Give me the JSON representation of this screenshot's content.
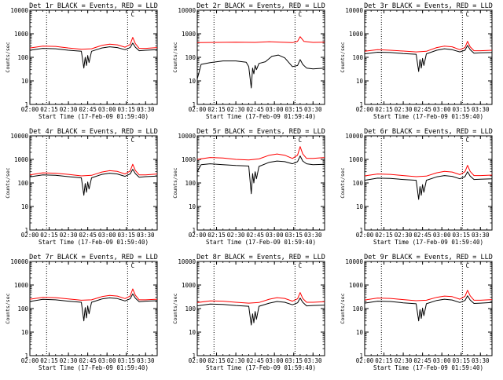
{
  "colors": {
    "events": "#000000",
    "lld": "#ff0000",
    "background": "#ffffff",
    "axes": "#000000"
  },
  "common": {
    "xlabel": "Start Time (17-Feb-09 01:59:40)",
    "ylabel": "Counts/sec",
    "x_ticks": [
      "02:00",
      "02:15",
      "02:30",
      "02:45",
      "03:00",
      "03:15",
      "03:30"
    ],
    "y_ticks": [
      "1",
      "10",
      "100",
      "1000",
      "10000"
    ],
    "marker_label": "C"
  },
  "chart_data": [
    {
      "type": "line",
      "id": "det1",
      "title": "Det 1r BLACK = Events, RED = LLD",
      "xlabel": "Start Time (17-Feb-09 01:59:40)",
      "ylabel": "Counts/sec",
      "xlim": [
        "02:00",
        "03:39"
      ],
      "ylim": [
        1,
        10000
      ],
      "yscale": "log",
      "vlines": [
        "02:13",
        "03:16"
      ],
      "marker": {
        "time": "03:20",
        "label": "C"
      },
      "series": [
        {
          "color": "#ff0000",
          "x": [
            "02:00",
            "02:10",
            "02:20",
            "02:30",
            "02:40",
            "02:48",
            "02:56",
            "03:02",
            "03:08",
            "03:14",
            "03:18",
            "03:20",
            "03:22",
            "03:25",
            "03:30",
            "03:39"
          ],
          "y": [
            250,
            300,
            290,
            250,
            220,
            230,
            320,
            360,
            340,
            270,
            350,
            700,
            380,
            240,
            240,
            260
          ]
        },
        {
          "color": "#000000",
          "x": [
            "02:00",
            "02:10",
            "02:20",
            "02:30",
            "02:40",
            "02:42",
            "02:43",
            "02:44",
            "02:45",
            "02:46",
            "02:48",
            "02:56",
            "03:02",
            "03:08",
            "03:14",
            "03:18",
            "03:20",
            "03:22",
            "03:25",
            "03:30",
            "03:39"
          ],
          "y": [
            200,
            240,
            230,
            200,
            180,
            35,
            100,
            45,
            120,
            60,
            180,
            250,
            280,
            260,
            210,
            260,
            400,
            270,
            190,
            200,
            210
          ]
        }
      ]
    },
    {
      "type": "line",
      "id": "det2",
      "title": "Det 2r BLACK = Events, RED = LLD",
      "xlabel": "Start Time (17-Feb-09 01:59:40)",
      "ylabel": "Counts/sec",
      "xlim": [
        "02:00",
        "03:39"
      ],
      "ylim": [
        1,
        10000
      ],
      "yscale": "log",
      "vlines": [
        "02:13",
        "03:16"
      ],
      "marker": {
        "time": "03:20",
        "label": "C"
      },
      "series": [
        {
          "color": "#ff0000",
          "x": [
            "02:00",
            "02:15",
            "02:30",
            "02:45",
            "02:56",
            "03:05",
            "03:14",
            "03:18",
            "03:20",
            "03:23",
            "03:30",
            "03:39"
          ],
          "y": [
            420,
            430,
            440,
            430,
            460,
            440,
            420,
            480,
            750,
            470,
            430,
            440
          ]
        },
        {
          "color": "#000000",
          "x": [
            "02:00",
            "02:03",
            "02:10",
            "02:20",
            "02:30",
            "02:38",
            "02:40",
            "02:42",
            "02:43",
            "02:44",
            "02:45",
            "02:46",
            "02:48",
            "02:53",
            "02:58",
            "03:03",
            "03:08",
            "03:14",
            "03:18",
            "03:20",
            "03:22",
            "03:25",
            "03:30",
            "03:39"
          ],
          "y": [
            12,
            50,
            60,
            70,
            70,
            62,
            40,
            5,
            35,
            20,
            45,
            30,
            55,
            65,
            110,
            125,
            95,
            40,
            45,
            80,
            50,
            35,
            32,
            35
          ]
        }
      ]
    },
    {
      "type": "line",
      "id": "det3",
      "title": "Det 3r BLACK = Events, RED = LLD",
      "xlabel": "Start Time (17-Feb-09 01:59:40)",
      "ylabel": "Counts/sec",
      "xlim": [
        "02:00",
        "03:39"
      ],
      "ylim": [
        1,
        10000
      ],
      "yscale": "log",
      "vlines": [
        "02:13",
        "03:16"
      ],
      "marker": {
        "time": "03:20",
        "label": "C"
      },
      "series": [
        {
          "color": "#ff0000",
          "x": [
            "02:00",
            "02:10",
            "02:20",
            "02:30",
            "02:40",
            "02:48",
            "02:56",
            "03:02",
            "03:08",
            "03:14",
            "03:18",
            "03:20",
            "03:22",
            "03:25",
            "03:30",
            "03:39"
          ],
          "y": [
            180,
            210,
            200,
            185,
            170,
            180,
            260,
            300,
            280,
            210,
            260,
            480,
            280,
            190,
            190,
            200
          ]
        },
        {
          "color": "#000000",
          "x": [
            "02:00",
            "02:10",
            "02:20",
            "02:30",
            "02:40",
            "02:42",
            "02:43",
            "02:44",
            "02:45",
            "02:46",
            "02:48",
            "02:56",
            "03:02",
            "03:08",
            "03:14",
            "03:18",
            "03:20",
            "03:22",
            "03:25",
            "03:30",
            "03:39"
          ],
          "y": [
            140,
            165,
            160,
            145,
            135,
            25,
            80,
            35,
            90,
            45,
            140,
            200,
            230,
            210,
            170,
            200,
            320,
            210,
            150,
            155,
            160
          ]
        }
      ]
    },
    {
      "type": "line",
      "id": "det4",
      "title": "Det 4r BLACK = Events, RED = LLD",
      "xlabel": "Start Time (17-Feb-09 01:59:40)",
      "ylabel": "Counts/sec",
      "xlim": [
        "02:00",
        "03:39"
      ],
      "ylim": [
        1,
        10000
      ],
      "yscale": "log",
      "vlines": [
        "02:13",
        "03:16"
      ],
      "marker": {
        "time": "03:20",
        "label": "C"
      },
      "series": [
        {
          "color": "#ff0000",
          "x": [
            "02:00",
            "02:10",
            "02:20",
            "02:30",
            "02:40",
            "02:48",
            "02:56",
            "03:02",
            "03:08",
            "03:14",
            "03:18",
            "03:20",
            "03:22",
            "03:25",
            "03:30",
            "03:39"
          ],
          "y": [
            220,
            270,
            260,
            230,
            200,
            210,
            290,
            330,
            310,
            240,
            320,
            620,
            340,
            220,
            220,
            240
          ]
        },
        {
          "color": "#000000",
          "x": [
            "02:00",
            "02:10",
            "02:20",
            "02:30",
            "02:40",
            "02:42",
            "02:43",
            "02:44",
            "02:45",
            "02:46",
            "02:48",
            "02:56",
            "03:02",
            "03:08",
            "03:14",
            "03:18",
            "03:20",
            "03:22",
            "03:25",
            "03:30",
            "03:39"
          ],
          "y": [
            180,
            220,
            210,
            185,
            165,
            30,
            95,
            40,
            110,
            55,
            165,
            230,
            260,
            240,
            190,
            240,
            380,
            250,
            175,
            185,
            195
          ]
        }
      ]
    },
    {
      "type": "line",
      "id": "det5",
      "title": "Det 5r BLACK = Events, RED = LLD",
      "xlabel": "Start Time (17-Feb-09 01:59:40)",
      "ylabel": "Counts/sec",
      "xlim": [
        "02:00",
        "03:39"
      ],
      "ylim": [
        1,
        10000
      ],
      "yscale": "log",
      "vlines": [
        "02:13",
        "03:16"
      ],
      "marker": {
        "time": "03:20",
        "label": "C"
      },
      "series": [
        {
          "color": "#ff0000",
          "x": [
            "02:00",
            "02:10",
            "02:20",
            "02:30",
            "02:40",
            "02:48",
            "02:56",
            "03:02",
            "03:08",
            "03:14",
            "03:18",
            "03:20",
            "03:22",
            "03:25",
            "03:30",
            "03:39"
          ],
          "y": [
            1000,
            1200,
            1150,
            1000,
            950,
            1050,
            1500,
            1700,
            1500,
            1100,
            1500,
            3500,
            1700,
            1100,
            1100,
            1200
          ]
        },
        {
          "color": "#000000",
          "x": [
            "02:00",
            "02:03",
            "02:10",
            "02:20",
            "02:30",
            "02:40",
            "02:42",
            "02:43",
            "02:44",
            "02:45",
            "02:46",
            "02:48",
            "02:56",
            "03:02",
            "03:08",
            "03:14",
            "03:18",
            "03:20",
            "03:22",
            "03:25",
            "03:30",
            "03:39"
          ],
          "y": [
            300,
            600,
            650,
            600,
            550,
            520,
            35,
            250,
            100,
            300,
            150,
            500,
            750,
            850,
            800,
            650,
            800,
            1400,
            850,
            650,
            600,
            620
          ]
        }
      ]
    },
    {
      "type": "line",
      "id": "det6",
      "title": "Det 6r BLACK = Events, RED = LLD",
      "xlabel": "Start Time (17-Feb-09 01:59:40)",
      "ylabel": "Counts/sec",
      "xlim": [
        "02:00",
        "03:39"
      ],
      "ylim": [
        1,
        10000
      ],
      "yscale": "log",
      "vlines": [
        "02:13",
        "03:16"
      ],
      "marker": {
        "time": "03:20",
        "label": "C"
      },
      "series": [
        {
          "color": "#ff0000",
          "x": [
            "02:00",
            "02:10",
            "02:20",
            "02:30",
            "02:40",
            "02:48",
            "02:56",
            "03:02",
            "03:08",
            "03:14",
            "03:18",
            "03:20",
            "03:22",
            "03:25",
            "03:30",
            "03:39"
          ],
          "y": [
            200,
            240,
            230,
            205,
            185,
            195,
            270,
            310,
            290,
            225,
            300,
            560,
            310,
            205,
            205,
            215
          ]
        },
        {
          "color": "#000000",
          "x": [
            "02:00",
            "02:10",
            "02:20",
            "02:30",
            "02:40",
            "02:42",
            "02:43",
            "02:44",
            "02:45",
            "02:46",
            "02:48",
            "02:56",
            "03:02",
            "03:08",
            "03:14",
            "03:18",
            "03:20",
            "03:22",
            "03:25",
            "03:30",
            "03:39"
          ],
          "y": [
            130,
            160,
            155,
            140,
            130,
            20,
            70,
            30,
            85,
            40,
            130,
            180,
            205,
            190,
            150,
            185,
            300,
            195,
            140,
            145,
            150
          ]
        }
      ]
    },
    {
      "type": "line",
      "id": "det7",
      "title": "Det 7r BLACK = Events, RED = LLD",
      "xlabel": "Start Time (17-Feb-09 01:59:40)",
      "ylabel": "Counts/sec",
      "xlim": [
        "02:00",
        "03:39"
      ],
      "ylim": [
        1,
        10000
      ],
      "yscale": "log",
      "vlines": [
        "02:13",
        "03:16"
      ],
      "marker": {
        "time": "03:20",
        "label": "C"
      },
      "series": [
        {
          "color": "#ff0000",
          "x": [
            "02:00",
            "02:10",
            "02:20",
            "02:30",
            "02:40",
            "02:48",
            "02:56",
            "03:02",
            "03:08",
            "03:14",
            "03:18",
            "03:20",
            "03:22",
            "03:25",
            "03:30",
            "03:39"
          ],
          "y": [
            250,
            300,
            290,
            255,
            225,
            235,
            320,
            360,
            340,
            265,
            340,
            680,
            370,
            235,
            235,
            250
          ]
        },
        {
          "color": "#000000",
          "x": [
            "02:00",
            "02:10",
            "02:20",
            "02:30",
            "02:40",
            "02:42",
            "02:43",
            "02:44",
            "02:45",
            "02:46",
            "02:48",
            "02:56",
            "03:02",
            "03:08",
            "03:14",
            "03:18",
            "03:20",
            "03:22",
            "03:25",
            "03:30",
            "03:39"
          ],
          "y": [
            200,
            245,
            235,
            205,
            185,
            30,
            110,
            40,
            130,
            60,
            185,
            255,
            285,
            265,
            210,
            260,
            420,
            275,
            195,
            205,
            215
          ]
        }
      ]
    },
    {
      "type": "line",
      "id": "det8",
      "title": "Det 8r BLACK = Events, RED = LLD",
      "xlabel": "Start Time (17-Feb-09 01:59:40)",
      "ylabel": "Counts/sec",
      "xlim": [
        "02:00",
        "03:39"
      ],
      "ylim": [
        1,
        10000
      ],
      "yscale": "log",
      "vlines": [
        "02:13",
        "03:16"
      ],
      "marker": {
        "time": "03:20",
        "label": "C"
      },
      "series": [
        {
          "color": "#ff0000",
          "x": [
            "02:00",
            "02:10",
            "02:20",
            "02:30",
            "02:40",
            "02:48",
            "02:56",
            "03:02",
            "03:08",
            "03:14",
            "03:18",
            "03:20",
            "03:22",
            "03:25",
            "03:30",
            "03:39"
          ],
          "y": [
            180,
            210,
            205,
            185,
            170,
            180,
            250,
            290,
            270,
            205,
            260,
            480,
            270,
            185,
            185,
            195
          ]
        },
        {
          "color": "#000000",
          "x": [
            "02:00",
            "02:10",
            "02:20",
            "02:30",
            "02:40",
            "02:42",
            "02:43",
            "02:44",
            "02:45",
            "02:46",
            "02:48",
            "02:56",
            "03:02",
            "03:08",
            "03:14",
            "03:18",
            "03:20",
            "03:22",
            "03:25",
            "03:30",
            "03:39"
          ],
          "y": [
            130,
            155,
            150,
            135,
            125,
            20,
            60,
            25,
            75,
            35,
            125,
            170,
            200,
            185,
            145,
            175,
            280,
            185,
            130,
            135,
            140
          ]
        }
      ]
    },
    {
      "type": "line",
      "id": "det9",
      "title": "Det 9r BLACK = Events, RED = LLD",
      "xlabel": "Start Time (17-Feb-09 01:59:40)",
      "ylabel": "Counts/sec",
      "xlim": [
        "02:00",
        "03:39"
      ],
      "ylim": [
        1,
        10000
      ],
      "yscale": "log",
      "vlines": [
        "02:13",
        "03:16"
      ],
      "marker": {
        "time": "03:20",
        "label": "C"
      },
      "series": [
        {
          "color": "#ff0000",
          "x": [
            "02:00",
            "02:10",
            "02:20",
            "02:30",
            "02:40",
            "02:48",
            "02:56",
            "03:02",
            "03:08",
            "03:14",
            "03:18",
            "03:20",
            "03:22",
            "03:25",
            "03:30",
            "03:39"
          ],
          "y": [
            230,
            280,
            270,
            240,
            215,
            225,
            300,
            340,
            320,
            250,
            330,
            600,
            350,
            225,
            225,
            240
          ]
        },
        {
          "color": "#000000",
          "x": [
            "02:00",
            "02:10",
            "02:20",
            "02:30",
            "02:40",
            "02:42",
            "02:43",
            "02:44",
            "02:45",
            "02:46",
            "02:48",
            "02:56",
            "03:02",
            "03:08",
            "03:14",
            "03:18",
            "03:20",
            "03:22",
            "03:25",
            "03:30",
            "03:39"
          ],
          "y": [
            170,
            205,
            200,
            175,
            160,
            30,
            90,
            38,
            105,
            50,
            160,
            220,
            250,
            230,
            180,
            220,
            350,
            230,
            165,
            170,
            180
          ]
        }
      ]
    }
  ]
}
